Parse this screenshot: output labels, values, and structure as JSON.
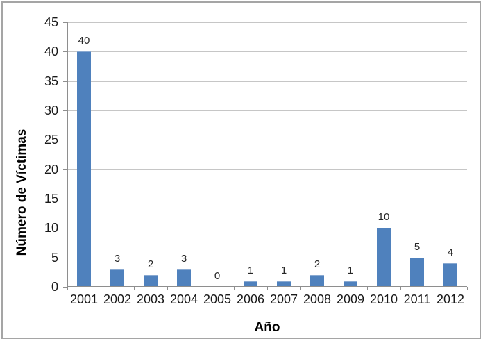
{
  "chart_data": {
    "type": "bar",
    "categories": [
      "2001",
      "2002",
      "2003",
      "2004",
      "2005",
      "2006",
      "2007",
      "2008",
      "2009",
      "2010",
      "2011",
      "2012"
    ],
    "values": [
      40,
      3,
      2,
      3,
      0,
      1,
      1,
      2,
      1,
      10,
      5,
      4
    ],
    "data_labels": [
      "40",
      "3",
      "2",
      "3",
      "0",
      "1",
      "1",
      "2",
      "1",
      "10",
      "5",
      "4"
    ],
    "title": "",
    "xlabel": "Año",
    "ylabel": "Número de Víctimas",
    "ylim": [
      0,
      45
    ],
    "yticks": [
      0,
      5,
      10,
      15,
      20,
      25,
      30,
      35,
      40,
      45
    ],
    "grid": "horizontal",
    "legend": "none",
    "show_data_labels": true
  },
  "colors": {
    "bar": "#4f81bd",
    "bar_top_highlight": "#89a9d1",
    "gridline": "#c6c6c6",
    "axis": "#8e8e8e",
    "frame_border": "#a5a5a5",
    "tick_label": "#1a1a1a",
    "data_label": "#262626",
    "title_text": "#000000",
    "background": "#ffffff"
  }
}
